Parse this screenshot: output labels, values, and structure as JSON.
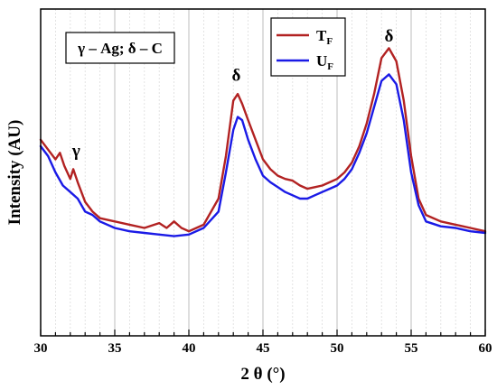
{
  "chart_data": {
    "type": "line",
    "title": "",
    "xlabel": "2 θ (°)",
    "ylabel": "Intensity (AU)",
    "xlim": [
      30,
      60
    ],
    "ylim": [
      0,
      100
    ],
    "x_ticks": [
      "30",
      "35",
      "40",
      "45",
      "50",
      "55",
      "60"
    ],
    "grid": {
      "major_vertical": true,
      "minor_vertical": true
    },
    "legend": {
      "placement": "top-center"
    },
    "phase_box": "γ – Ag; δ – C",
    "annotations": [
      {
        "text": "γ",
        "x": 32.4,
        "y": 55
      },
      {
        "text": "δ",
        "x": 43.2,
        "y": 78
      },
      {
        "text": "δ",
        "x": 53.5,
        "y": 90
      }
    ],
    "series": [
      {
        "name": "T",
        "subscript": "F",
        "color": "#b22222",
        "points": [
          [
            30,
            60
          ],
          [
            30.5,
            57
          ],
          [
            31,
            54
          ],
          [
            31.3,
            56
          ],
          [
            31.6,
            52
          ],
          [
            32,
            48
          ],
          [
            32.2,
            51
          ],
          [
            32.5,
            47
          ],
          [
            33,
            41
          ],
          [
            33.5,
            38
          ],
          [
            34,
            36
          ],
          [
            35,
            35
          ],
          [
            36,
            34
          ],
          [
            37,
            33
          ],
          [
            38,
            34.5
          ],
          [
            38.5,
            33
          ],
          [
            39,
            35
          ],
          [
            39.5,
            33
          ],
          [
            40,
            32
          ],
          [
            41,
            34
          ],
          [
            42,
            42
          ],
          [
            42.5,
            55
          ],
          [
            43,
            72
          ],
          [
            43.3,
            74
          ],
          [
            43.6,
            71
          ],
          [
            44,
            66
          ],
          [
            44.5,
            60
          ],
          [
            45,
            54
          ],
          [
            45.5,
            51
          ],
          [
            46,
            49
          ],
          [
            46.5,
            48
          ],
          [
            47,
            47.5
          ],
          [
            47.5,
            46
          ],
          [
            48,
            45
          ],
          [
            48.5,
            45.5
          ],
          [
            49,
            46
          ],
          [
            49.5,
            47
          ],
          [
            50,
            48
          ],
          [
            50.5,
            50
          ],
          [
            51,
            53
          ],
          [
            51.5,
            58
          ],
          [
            52,
            65
          ],
          [
            52.5,
            74
          ],
          [
            53,
            85
          ],
          [
            53.5,
            88
          ],
          [
            54,
            84
          ],
          [
            54.5,
            72
          ],
          [
            55,
            55
          ],
          [
            55.5,
            42
          ],
          [
            56,
            37
          ],
          [
            57,
            35
          ],
          [
            58,
            34
          ],
          [
            59,
            33
          ],
          [
            60,
            32
          ]
        ]
      },
      {
        "name": "U",
        "subscript": "F",
        "color": "#1a1ae6",
        "points": [
          [
            30,
            58
          ],
          [
            30.5,
            55
          ],
          [
            31,
            50
          ],
          [
            31.5,
            46
          ],
          [
            32,
            44
          ],
          [
            32.5,
            42
          ],
          [
            33,
            38
          ],
          [
            33.5,
            37
          ],
          [
            34,
            35
          ],
          [
            35,
            33
          ],
          [
            36,
            32
          ],
          [
            37,
            31.5
          ],
          [
            38,
            31
          ],
          [
            39,
            30.5
          ],
          [
            40,
            31
          ],
          [
            41,
            33
          ],
          [
            42,
            38
          ],
          [
            42.5,
            50
          ],
          [
            43,
            63
          ],
          [
            43.3,
            67
          ],
          [
            43.6,
            66
          ],
          [
            44,
            60
          ],
          [
            44.5,
            54
          ],
          [
            45,
            49
          ],
          [
            45.5,
            47
          ],
          [
            46,
            45.5
          ],
          [
            46.5,
            44
          ],
          [
            47,
            43
          ],
          [
            47.5,
            42
          ],
          [
            48,
            42
          ],
          [
            48.5,
            43
          ],
          [
            49,
            44
          ],
          [
            49.5,
            45
          ],
          [
            50,
            46
          ],
          [
            50.5,
            48
          ],
          [
            51,
            51
          ],
          [
            51.5,
            56
          ],
          [
            52,
            62
          ],
          [
            52.5,
            70
          ],
          [
            53,
            78
          ],
          [
            53.5,
            80
          ],
          [
            54,
            77
          ],
          [
            54.5,
            66
          ],
          [
            55,
            50
          ],
          [
            55.5,
            40
          ],
          [
            56,
            35
          ],
          [
            57,
            33.5
          ],
          [
            58,
            33
          ],
          [
            59,
            32
          ],
          [
            60,
            31.5
          ]
        ]
      }
    ]
  }
}
